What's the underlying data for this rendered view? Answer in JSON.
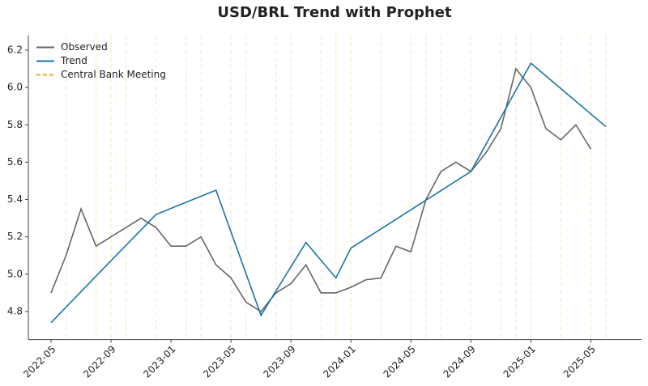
{
  "chart_data": {
    "type": "line",
    "title": "USD/BRL Trend with Prophet",
    "series": [
      {
        "name": "Observed",
        "color": "#666666",
        "x": [
          "2022-05",
          "2022-06",
          "2022-07",
          "2022-08",
          "2022-09",
          "2022-10",
          "2022-11",
          "2022-12",
          "2023-01",
          "2023-02",
          "2023-03",
          "2023-04",
          "2023-05",
          "2023-06",
          "2023-07",
          "2023-08",
          "2023-09",
          "2023-10",
          "2023-11",
          "2023-12",
          "2024-01",
          "2024-02",
          "2024-03",
          "2024-04",
          "2024-05",
          "2024-06",
          "2024-07",
          "2024-08",
          "2024-09",
          "2024-10",
          "2024-11",
          "2024-12",
          "2025-01",
          "2025-02",
          "2025-03",
          "2025-04",
          "2025-05"
        ],
        "values": [
          4.9,
          5.1,
          5.35,
          5.15,
          5.2,
          5.25,
          5.3,
          5.25,
          5.15,
          5.15,
          5.2,
          5.05,
          4.98,
          4.85,
          4.8,
          4.9,
          4.95,
          5.05,
          4.9,
          4.9,
          4.93,
          4.97,
          4.98,
          5.15,
          5.12,
          5.4,
          5.55,
          5.6,
          5.55,
          5.65,
          5.78,
          6.1,
          6.0,
          5.78,
          5.72,
          5.8,
          5.67
        ]
      },
      {
        "name": "Trend",
        "color": "#1a74a8",
        "x": [
          "2022-05",
          "2022-08",
          "2022-12",
          "2023-04",
          "2023-07",
          "2023-10",
          "2023-12",
          "2024-01",
          "2024-09",
          "2025-01",
          "2025-06"
        ],
        "values": [
          4.74,
          4.99,
          5.32,
          5.45,
          4.78,
          5.17,
          4.98,
          5.14,
          5.55,
          6.13,
          5.79
        ]
      }
    ],
    "events": {
      "name": "Central Bank Meeting",
      "color": "#f5a623",
      "x": [
        "2022-06",
        "2022-08",
        "2022-09",
        "2022-10",
        "2022-12",
        "2023-02",
        "2023-03",
        "2023-05",
        "2023-06",
        "2023-08",
        "2023-09",
        "2023-11",
        "2023-12",
        "2024-01",
        "2024-03",
        "2024-05",
        "2024-06",
        "2024-07",
        "2024-09",
        "2024-11",
        "2024-12",
        "2025-01",
        "2025-03",
        "2025-05",
        "2025-06"
      ]
    },
    "xlim": [
      "2022-04",
      "2025-08"
    ],
    "xticks": [
      "2022-05",
      "2022-09",
      "2023-01",
      "2023-05",
      "2023-09",
      "2024-01",
      "2024-05",
      "2024-09",
      "2025-01",
      "2025-05"
    ],
    "ylim": [
      4.65,
      6.28
    ],
    "yticks": [
      4.8,
      {
        "value": 5.0,
        "label": "5.0"
      },
      5.2,
      5.4,
      5.6,
      5.8,
      {
        "value": 6.0,
        "label": "6.0"
      },
      6.2
    ],
    "legend": "upper-left"
  }
}
